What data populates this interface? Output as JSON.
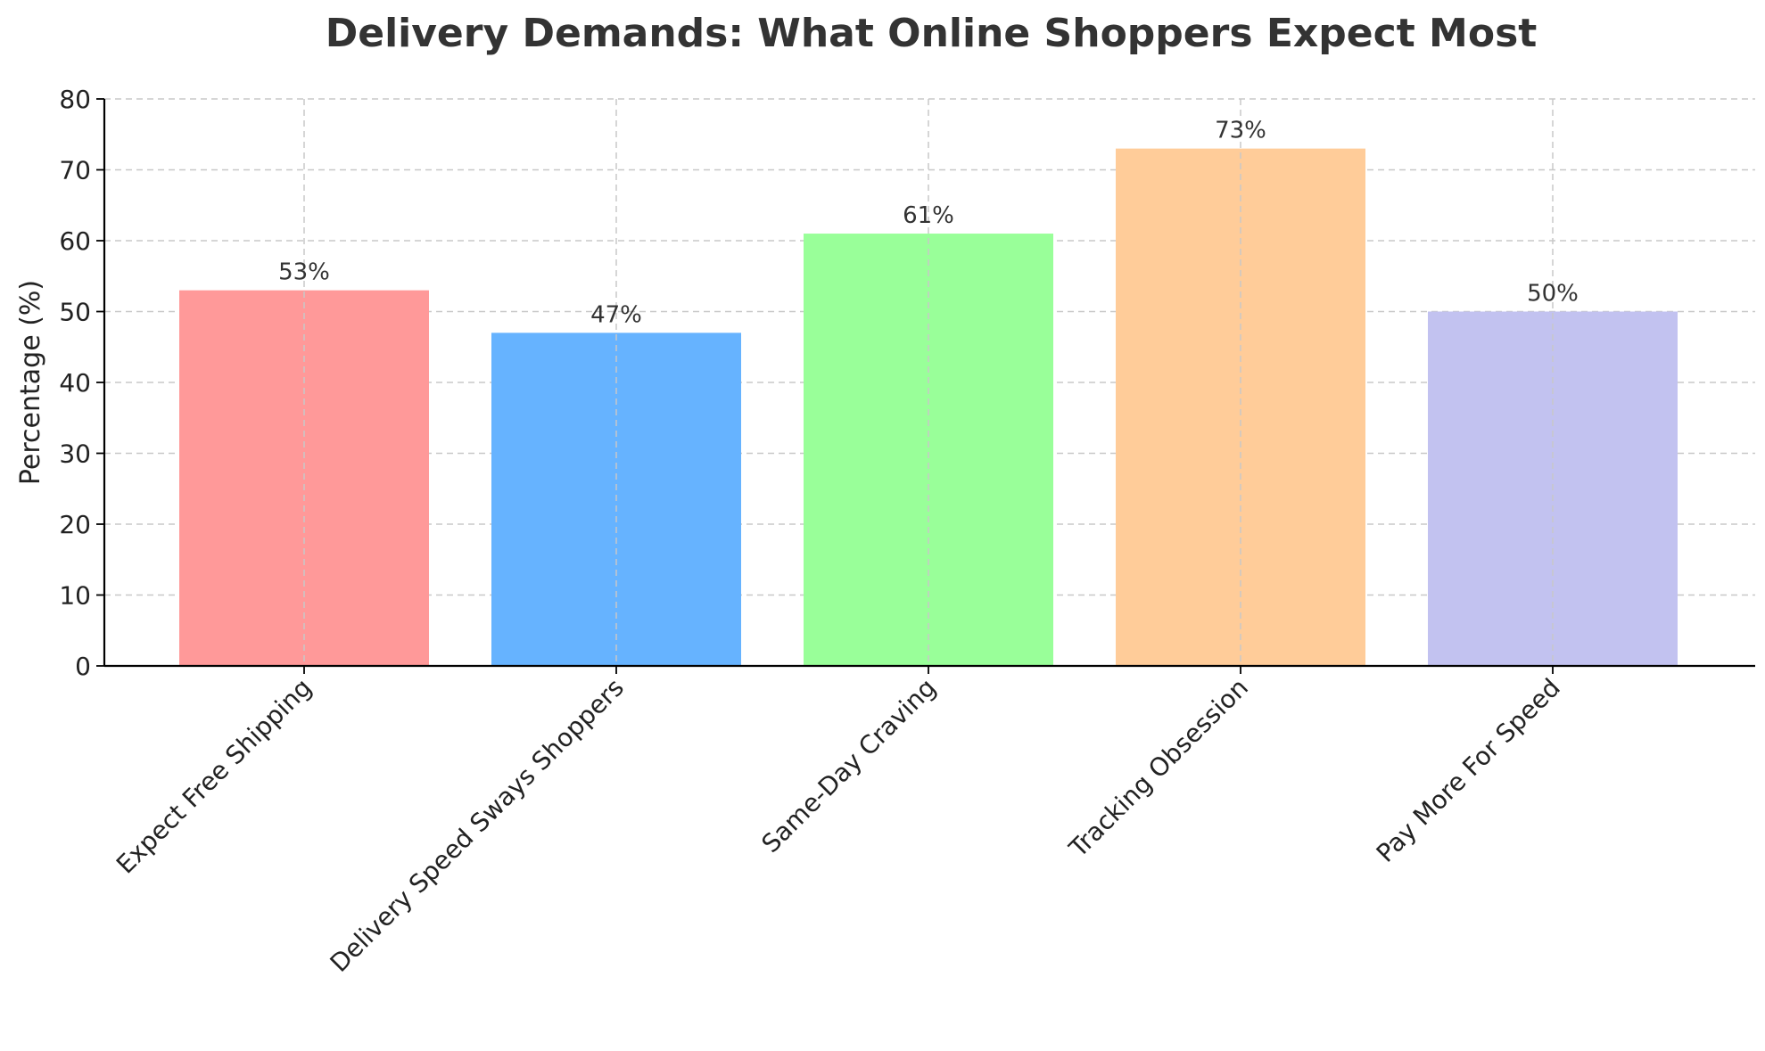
{
  "chart_data": {
    "type": "bar",
    "title": "Delivery Demands: What Online Shoppers Expect Most",
    "xlabel": "",
    "ylabel": "Percentage (%)",
    "ylim": [
      0,
      80
    ],
    "yticks": [
      0,
      10,
      20,
      30,
      40,
      50,
      60,
      70,
      80
    ],
    "grid": true,
    "categories": [
      "Expect Free Shipping",
      "Delivery Speed Sways Shoppers",
      "Same-Day Craving",
      "Tracking Obsession",
      "Pay More For Speed"
    ],
    "values": [
      53,
      47,
      61,
      73,
      50
    ],
    "value_labels": [
      "53%",
      "47%",
      "61%",
      "73%",
      "50%"
    ],
    "colors": [
      "#ff9999",
      "#66b3ff",
      "#99ff99",
      "#ffcc99",
      "#c2c2f0"
    ]
  }
}
